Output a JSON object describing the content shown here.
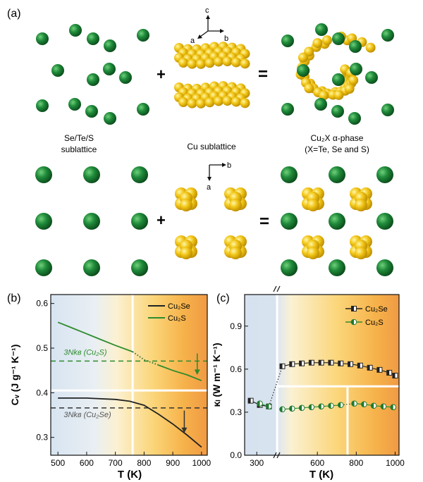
{
  "figure": {
    "panel_a": {
      "letter": "(a)",
      "axes_top": {
        "c": "c",
        "a": "a",
        "b": "b"
      },
      "axes_bottom": {
        "b": "b",
        "a": "a"
      },
      "plus_sign": "+",
      "equals_sign": "=",
      "labels": {
        "anion_line1": "Se/Te/S",
        "anion_line2": "sublattice",
        "cu": "Cu sublattice",
        "phase_line1": "Cu₂X α-phase",
        "phase_line2": "(X=Te, Se and S)"
      },
      "colors": {
        "anion": "#1f8a3a",
        "cu": "#f2c618"
      }
    },
    "panel_b": {
      "letter": "(b)",
      "legend": [
        "Cu₂Se",
        "Cu₂S"
      ],
      "annotations": {
        "dulong_s": "3Nkʙ (Cu₂S)",
        "dulong_se": "3Nkʙ (Cu₂Se)"
      },
      "ylabel": "Cᵥ (J g⁻¹ K⁻¹)",
      "xlabel": "T (K)",
      "colors": {
        "cu2se": "#222222",
        "cu2s": "#2e8b2e"
      }
    },
    "panel_c": {
      "letter": "(c)",
      "legend": [
        "Cu₂Se",
        "Cu₂S"
      ],
      "ylabel": "κₗ (W m⁻¹ K⁻¹)",
      "xlabel": "T (K)",
      "colors": {
        "cu2se": "#222222",
        "cu2s": "#2e8b2e"
      }
    }
  },
  "chart_data": [
    {
      "type": "line",
      "xlabel": "T (K)",
      "ylabel": "Cv (J g-1 K-1)",
      "xlim": [
        475,
        1020
      ],
      "ylim": [
        0.26,
        0.62
      ],
      "xticks": [
        500,
        600,
        700,
        800,
        900,
        1000
      ],
      "yticks": [
        0.3,
        0.4,
        0.5,
        0.6
      ],
      "xtick_labels": [
        "500",
        "600",
        "700",
        "800",
        "900",
        "1000"
      ],
      "ytick_labels": [
        "0.3",
        "0.4",
        "0.5",
        "0.6"
      ],
      "phase_transition_T": 760,
      "series": [
        {
          "name": "Cu₂Se",
          "x": [
            500,
            600,
            700,
            750,
            800,
            850,
            900,
            950,
            1000
          ],
          "y": [
            0.388,
            0.388,
            0.385,
            0.381,
            0.372,
            0.352,
            0.33,
            0.305,
            0.278
          ]
        },
        {
          "name": "Cu₂S",
          "x": [
            500,
            550,
            600,
            650,
            700,
            760
          ],
          "y": [
            0.558,
            0.545,
            0.532,
            0.519,
            0.506,
            0.492
          ]
        },
        {
          "name": "Cu₂S",
          "x": [
            760,
            800,
            850
          ],
          "y": [
            0.492,
            0.474,
            0.462
          ],
          "style": "dotted"
        },
        {
          "name": "Cu₂S",
          "x": [
            850,
            900,
            950,
            1000
          ],
          "y": [
            0.462,
            0.45,
            0.44,
            0.427
          ]
        }
      ],
      "reference_lines": [
        {
          "label": "3Nkʙ (Cu₂S)",
          "y": 0.471
        },
        {
          "label": "3Nkʙ (Cu₂Se)",
          "y": 0.366
        }
      ]
    },
    {
      "type": "line",
      "xlabel": "T (K)",
      "ylabel": "κl (W m-1 K-1)",
      "xlim": [
        260,
        1020
      ],
      "ylim": [
        0.0,
        1.12
      ],
      "xticks": [
        300,
        600,
        800,
        1000
      ],
      "yticks": [
        0.0,
        0.3,
        0.6,
        0.9
      ],
      "xtick_labels": [
        "300",
        "600",
        "800",
        "1000"
      ],
      "ytick_labels": [
        "0.0",
        "0.3",
        "0.6",
        "0.9"
      ],
      "series": [
        {
          "name": "Cu₂Se",
          "x": [
            280,
            310,
            340
          ],
          "y": [
            0.38,
            0.35,
            0.34
          ]
        },
        {
          "name": "Cu₂Se",
          "x": [
            420,
            470,
            520,
            570,
            620,
            670,
            720,
            770,
            820,
            870,
            920,
            970,
            1000
          ],
          "y": [
            0.62,
            0.635,
            0.64,
            0.645,
            0.645,
            0.645,
            0.64,
            0.635,
            0.625,
            0.61,
            0.595,
            0.575,
            0.555
          ]
        },
        {
          "name": "Cu₂S",
          "x": [
            310,
            340
          ],
          "y": [
            0.36,
            0.34
          ]
        },
        {
          "name": "Cu₂S",
          "x": [
            420,
            470,
            520,
            570,
            620,
            670,
            720
          ],
          "y": [
            0.32,
            0.325,
            0.33,
            0.335,
            0.34,
            0.345,
            0.35
          ]
        },
        {
          "name": "Cu₂S",
          "x": [
            790,
            840,
            890,
            940,
            990
          ],
          "y": [
            0.36,
            0.355,
            0.345,
            0.34,
            0.335
          ]
        }
      ]
    }
  ]
}
